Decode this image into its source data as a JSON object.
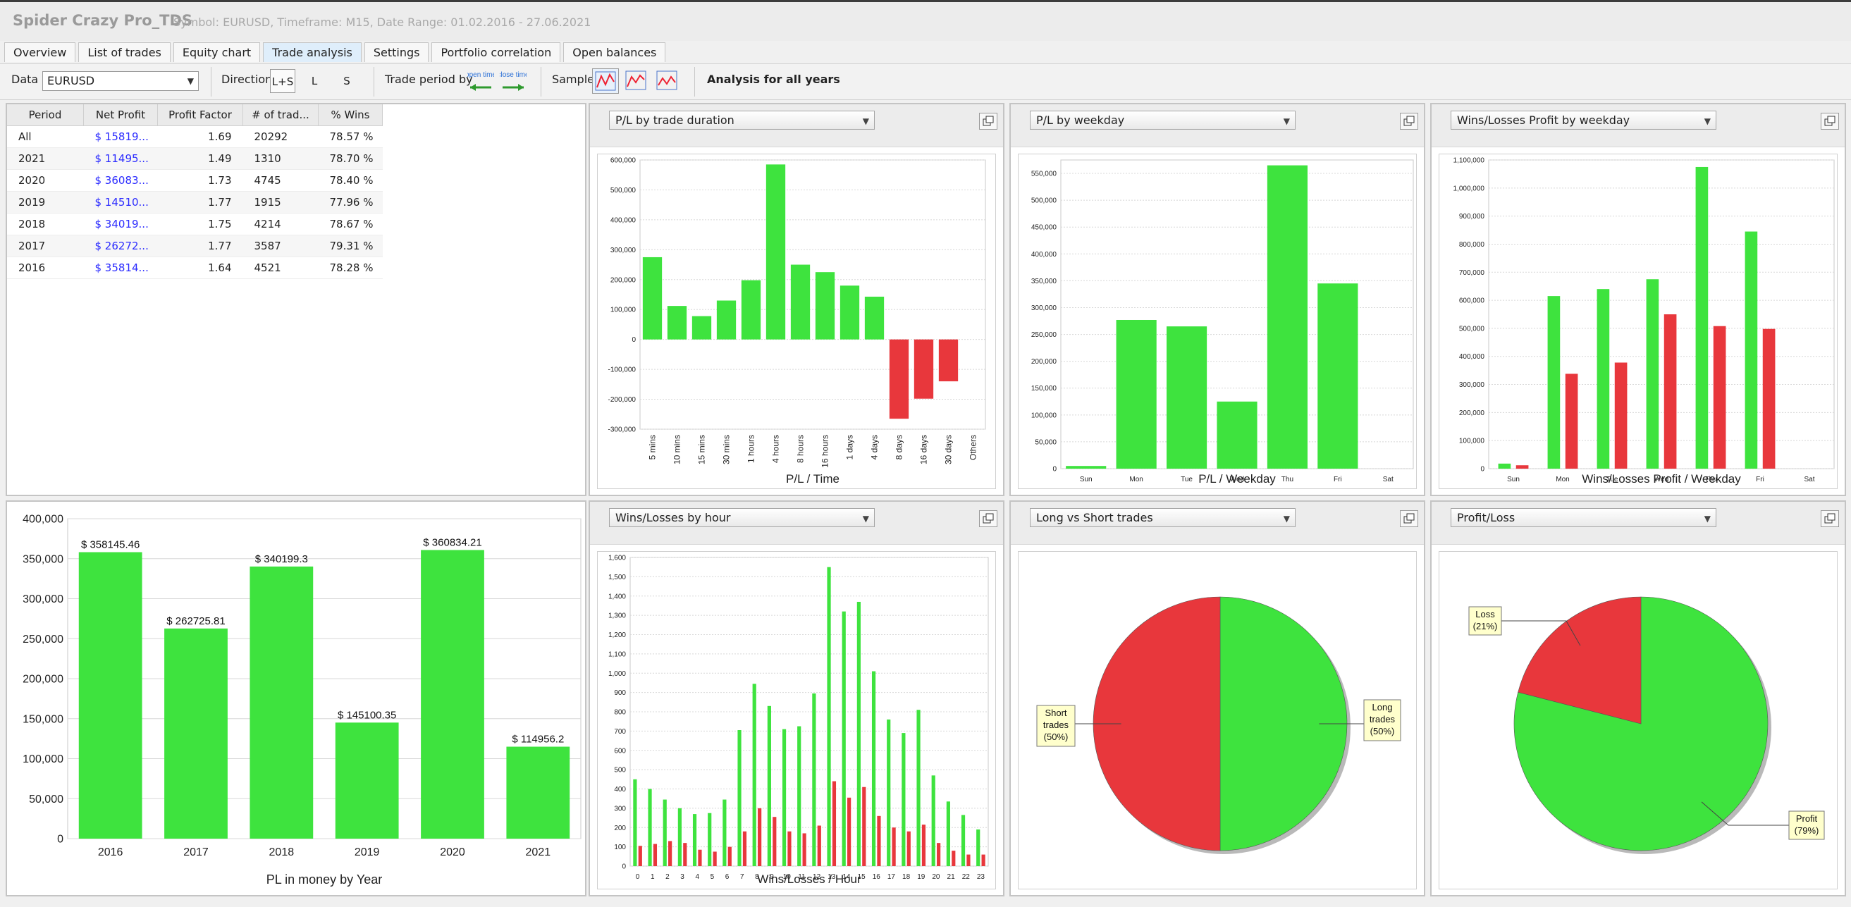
{
  "app": {
    "title": "Spider Crazy Pro_TDS",
    "subtitle": "Symbol: EURUSD, Timeframe: M15, Date Range: 01.02.2016 - 27.06.2021"
  },
  "tabs": [
    "Overview",
    "List of trades",
    "Equity chart",
    "Trade analysis",
    "Settings",
    "Portfolio correlation",
    "Open balances"
  ],
  "active_tab": "Trade analysis",
  "toolbar": {
    "data_label": "Data",
    "data_value": "EURUSD",
    "direction_label": "Direction",
    "direction_options": [
      "L+S",
      "L",
      "S"
    ],
    "trade_period_label": "Trade period by",
    "open_time_label": "open time",
    "close_time_label": "close time",
    "sample_label": "Sample",
    "sample_icons": [
      "all-sample-icon",
      "in-sample-icon",
      "out-of-sample-icon"
    ],
    "analysis_label": "Analysis for all years"
  },
  "table": {
    "headers": [
      "Period",
      "Net Profit",
      "Profit Factor",
      "# of trad...",
      "% Wins"
    ],
    "rows": [
      [
        "All",
        "$ 15819...",
        "1.69",
        "20292",
        "78.57 %"
      ],
      [
        "2021",
        "$ 11495...",
        "1.49",
        "1310",
        "78.70 %"
      ],
      [
        "2020",
        "$ 36083...",
        "1.73",
        "4745",
        "78.40 %"
      ],
      [
        "2019",
        "$ 14510...",
        "1.77",
        "1915",
        "77.96 %"
      ],
      [
        "2018",
        "$ 34019...",
        "1.75",
        "4214",
        "78.67 %"
      ],
      [
        "2017",
        "$ 26272...",
        "1.77",
        "3587",
        "79.31 %"
      ],
      [
        "2016",
        "$ 35814...",
        "1.64",
        "4521",
        "78.28 %"
      ]
    ]
  },
  "panels": {
    "pl_duration": {
      "dropdown": "P/L by trade duration"
    },
    "pl_weekday": {
      "dropdown": "P/L by weekday"
    },
    "wl_weekday": {
      "dropdown": "Wins/Losses Profit by weekday"
    },
    "wl_hour": {
      "dropdown": "Wins/Losses by hour"
    },
    "long_short": {
      "dropdown": "Long vs Short trades"
    },
    "profit_loss": {
      "dropdown": "Profit/Loss"
    }
  },
  "colors": {
    "profit": "#3ee33e",
    "loss": "#e8373c",
    "grid": "#d8d8d8"
  },
  "chart_data": [
    {
      "id": "pl_year",
      "type": "bar",
      "xlabel": "PL in money by Year",
      "categories": [
        "2016",
        "2017",
        "2018",
        "2019",
        "2020",
        "2021"
      ],
      "values": [
        358145.46,
        262725.81,
        340199.3,
        145100.35,
        360834.21,
        114956.2
      ],
      "labels": [
        "$ 358145.46",
        "$ 262725.81",
        "$ 340199.3",
        "$ 145100.35",
        "$ 360834.21",
        "$ 114956.2"
      ],
      "ylim": [
        0,
        400000
      ],
      "yticks": [
        "0",
        "50,000",
        "100,000",
        "150,000",
        "200,000",
        "250,000",
        "300,000",
        "350,000",
        "400,000"
      ]
    },
    {
      "id": "pl_duration",
      "type": "bar",
      "xlabel": "P/L / Time",
      "categories": [
        "5 mins",
        "10 mins",
        "15 mins",
        "30 mins",
        "1 hours",
        "4 hours",
        "8 hours",
        "16 hours",
        "1 days",
        "4 days",
        "8 days",
        "16 days",
        "30 days",
        "Others"
      ],
      "values": [
        275000,
        112000,
        78000,
        130000,
        198000,
        585000,
        250000,
        225000,
        180000,
        143000,
        -265000,
        -198000,
        -140000,
        0
      ],
      "ylim": [
        -300000,
        600000
      ],
      "yticks": [
        "-300,000",
        "-200,000",
        "-100,000",
        "0",
        "100,000",
        "200,000",
        "300,000",
        "400,000",
        "500,000",
        "600,000"
      ]
    },
    {
      "id": "pl_weekday",
      "type": "bar",
      "xlabel": "P/L / Weekday",
      "categories": [
        "Sun",
        "Mon",
        "Tue",
        "Wed",
        "Thu",
        "Fri",
        "Sat"
      ],
      "values": [
        5000,
        277000,
        265000,
        125000,
        565000,
        345000,
        0
      ],
      "ylim": [
        0,
        575000
      ],
      "yticks": [
        "0",
        "50,000",
        "100,000",
        "150,000",
        "200,000",
        "250,000",
        "300,000",
        "350,000",
        "400,000",
        "450,000",
        "500,000",
        "550,000"
      ]
    },
    {
      "id": "wl_weekday",
      "type": "bar",
      "xlabel": "Wins/Losses Profit / Weekday",
      "categories": [
        "Sun",
        "Mon",
        "Tue",
        "Wed",
        "Thu",
        "Fri",
        "Sat"
      ],
      "series": [
        {
          "values": [
            18000,
            615000,
            640000,
            675000,
            1075000,
            845000,
            0
          ]
        },
        {
          "values": [
            12000,
            338000,
            378000,
            550000,
            508000,
            498000,
            0
          ]
        }
      ],
      "ylim": [
        0,
        1100000
      ],
      "yticks": [
        "0",
        "100,000",
        "200,000",
        "300,000",
        "400,000",
        "500,000",
        "600,000",
        "700,000",
        "800,000",
        "900,000",
        "1,000,000",
        "1,100,000"
      ]
    },
    {
      "id": "wl_hour",
      "type": "bar",
      "xlabel": "Wins/Losses / Hour",
      "categories": [
        "0",
        "1",
        "2",
        "3",
        "4",
        "5",
        "6",
        "7",
        "8",
        "9",
        "10",
        "11",
        "12",
        "13",
        "14",
        "15",
        "16",
        "17",
        "18",
        "19",
        "20",
        "21",
        "22",
        "23"
      ],
      "series": [
        {
          "values": [
            450,
            400,
            345,
            300,
            270,
            275,
            345,
            705,
            945,
            830,
            710,
            725,
            895,
            1550,
            1320,
            1370,
            1010,
            760,
            690,
            810,
            470,
            335,
            265,
            190
          ]
        },
        {
          "values": [
            105,
            115,
            130,
            120,
            85,
            75,
            100,
            180,
            300,
            255,
            180,
            170,
            210,
            440,
            355,
            410,
            260,
            200,
            180,
            215,
            120,
            80,
            60,
            60
          ]
        }
      ],
      "ylim": [
        0,
        1600
      ],
      "yticks": [
        "0",
        "100",
        "200",
        "300",
        "400",
        "500",
        "600",
        "700",
        "800",
        "900",
        "1,000",
        "1,100",
        "1,200",
        "1,300",
        "1,400",
        "1,500",
        "1,600"
      ]
    },
    {
      "id": "long_short",
      "type": "pie",
      "slices": [
        {
          "name": "Long trades",
          "label": "Long trades (50%)",
          "value": 50
        },
        {
          "name": "Short trades",
          "label": "Short trades (50%)",
          "value": 50
        }
      ]
    },
    {
      "id": "profit_loss",
      "type": "pie",
      "slices": [
        {
          "name": "Profit",
          "label": "Profit (79%)",
          "value": 79
        },
        {
          "name": "Loss",
          "label": "Loss (21%)",
          "value": 21
        }
      ]
    }
  ]
}
